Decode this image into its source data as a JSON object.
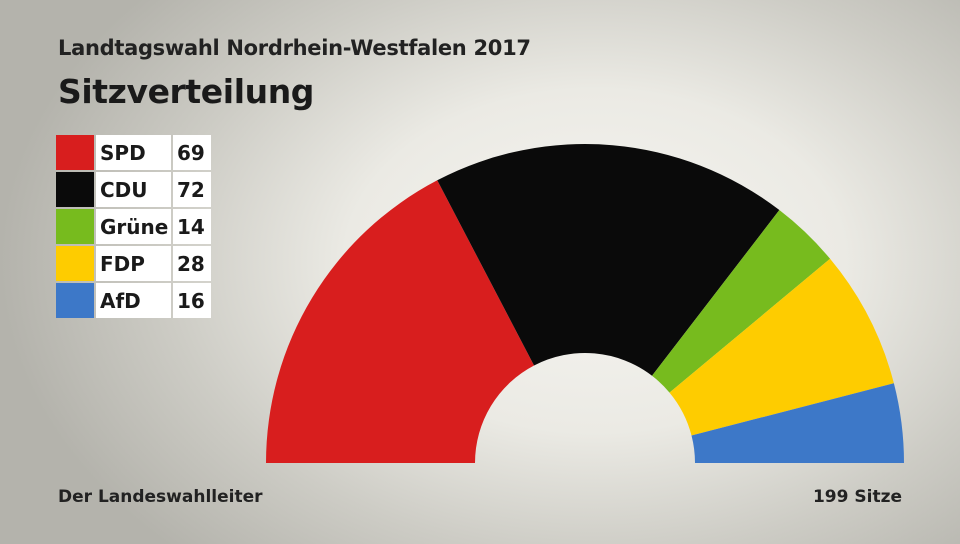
{
  "header": {
    "subtitle": "Landtagswahl Nordrhein-Westfalen 2017",
    "title": "Sitzverteilung"
  },
  "footer": {
    "source": "Der Landeswahlleiter",
    "total": "199 Sitze"
  },
  "chart_data": {
    "type": "pie",
    "variant": "parliament-half-donut",
    "title": "Sitzverteilung",
    "total_seats": 199,
    "legend_placement": "top-left",
    "series": [
      {
        "name": "SPD",
        "value": 69,
        "color": "#d81e1e"
      },
      {
        "name": "CDU",
        "value": 72,
        "color": "#0a0a0a"
      },
      {
        "name": "Grüne",
        "value": 14,
        "color": "#77bb1e"
      },
      {
        "name": "FDP",
        "value": 28,
        "color": "#fecc00"
      },
      {
        "name": "AfD",
        "value": 16,
        "color": "#3d78c8"
      }
    ]
  }
}
